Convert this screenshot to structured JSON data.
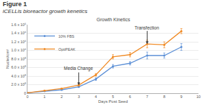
{
  "chart_data": {
    "type": "line",
    "figure": "Figure 1",
    "caption": "iCELLis bioreactor growth kenetics",
    "title": "Growth Kinetics",
    "x_label": "Days Post Seed",
    "y_label": "Nuclei/cm²",
    "x": [
      0,
      1,
      2,
      3,
      4,
      5,
      6,
      7,
      8,
      9
    ],
    "series": [
      {
        "name": "10% FBS",
        "color": "#5b8fd6",
        "marker": "circle",
        "values": [
          10000,
          50000,
          80000,
          150000,
          330000,
          630000,
          700000,
          880000,
          880000,
          1080000
        ],
        "errors": [
          0,
          5000,
          10000,
          15000,
          30000,
          40000,
          40000,
          80000,
          60000,
          80000
        ]
      },
      {
        "name": "OptiPEAK",
        "color": "#f08a24",
        "marker": "circle",
        "values": [
          10000,
          60000,
          110000,
          190000,
          430000,
          850000,
          900000,
          1150000,
          1130000,
          1450000
        ],
        "errors": [
          0,
          5000,
          10000,
          20000,
          30000,
          50000,
          50000,
          90000,
          70000,
          60000
        ]
      }
    ],
    "annotations": [
      {
        "text": "Media Change",
        "x": 3
      },
      {
        "text": "Transfection",
        "x": 7
      }
    ],
    "xlim": [
      0,
      10
    ],
    "xticks": [
      0,
      1,
      2,
      3,
      4,
      5,
      6,
      7,
      8,
      9,
      10
    ],
    "ylim": [
      0,
      1600000
    ],
    "yticks": [
      0,
      {
        "value": 200000,
        "label": "2.0 x 10⁵"
      },
      {
        "value": 400000,
        "label": "4.0 x 10⁵"
      },
      {
        "value": 600000,
        "label": "6.0 x 10⁵"
      },
      {
        "value": 800000,
        "label": "8.0 x 10⁵"
      },
      {
        "value": 1000000,
        "label": "1.0 x 10⁶"
      },
      {
        "value": 1200000,
        "label": "1.2 x 10⁶"
      },
      {
        "value": 1400000,
        "label": "1.4 x 10⁶"
      },
      {
        "value": 1600000,
        "label": "1.6 x 10⁶"
      }
    ],
    "grid": true,
    "legend": "top left"
  }
}
